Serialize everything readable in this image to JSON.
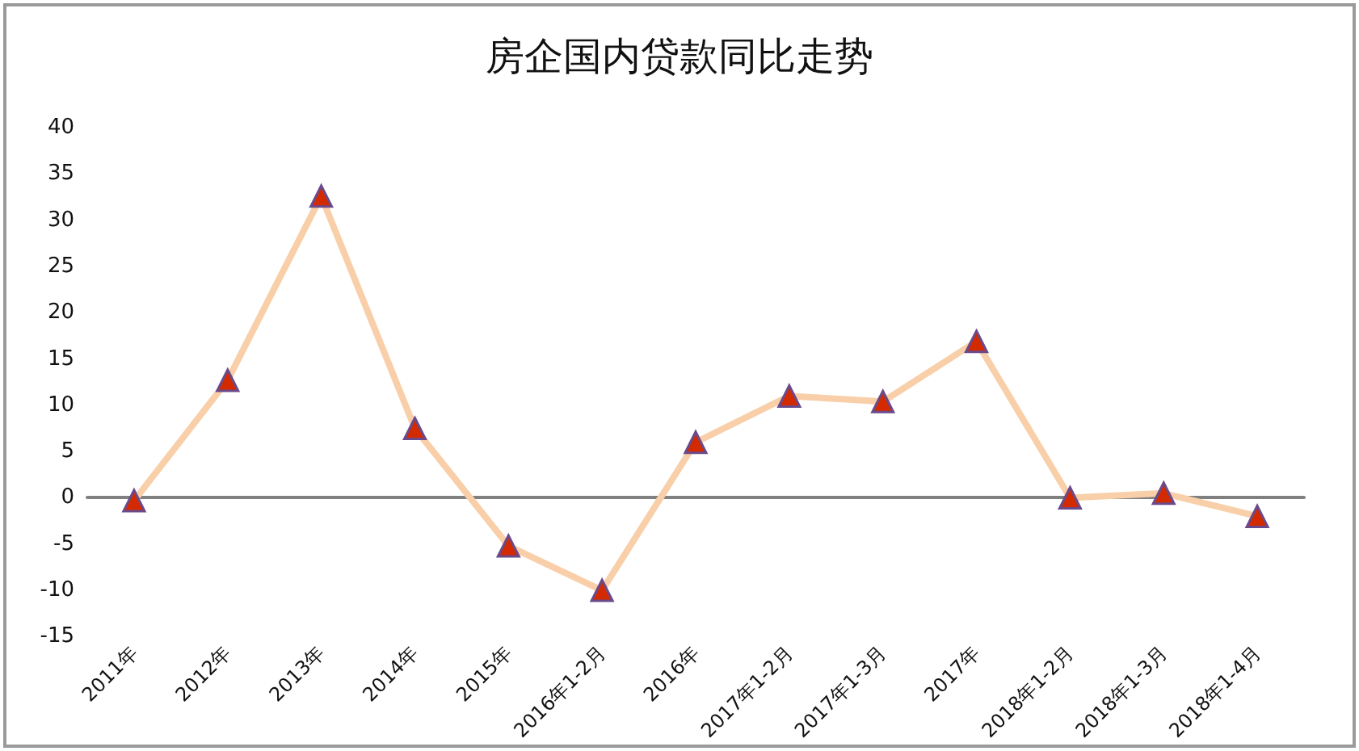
{
  "chart_data": {
    "type": "line",
    "title": "房企国内贷款同比走势",
    "categories": [
      "2011年",
      "2012年",
      "2013年",
      "2014年",
      "2015年",
      "2016年1-2月",
      "2016年",
      "2017年1-2月",
      "2017年1-3月",
      "2017年",
      "2018年1-2月",
      "2018年1-3月",
      "2018年1-4月"
    ],
    "series": [
      {
        "color": "#f8cfa8",
        "values": [
          -0.3,
          12.7,
          32.6,
          7.5,
          -5.2,
          -10,
          6,
          11,
          10.4,
          16.9,
          0,
          0.5,
          -2
        ]
      }
    ],
    "ylim": [
      -15,
      40
    ],
    "yticks": [
      -15,
      -10,
      -5,
      0,
      5,
      10,
      15,
      20,
      25,
      30,
      35,
      40
    ],
    "marker": "triangle"
  }
}
